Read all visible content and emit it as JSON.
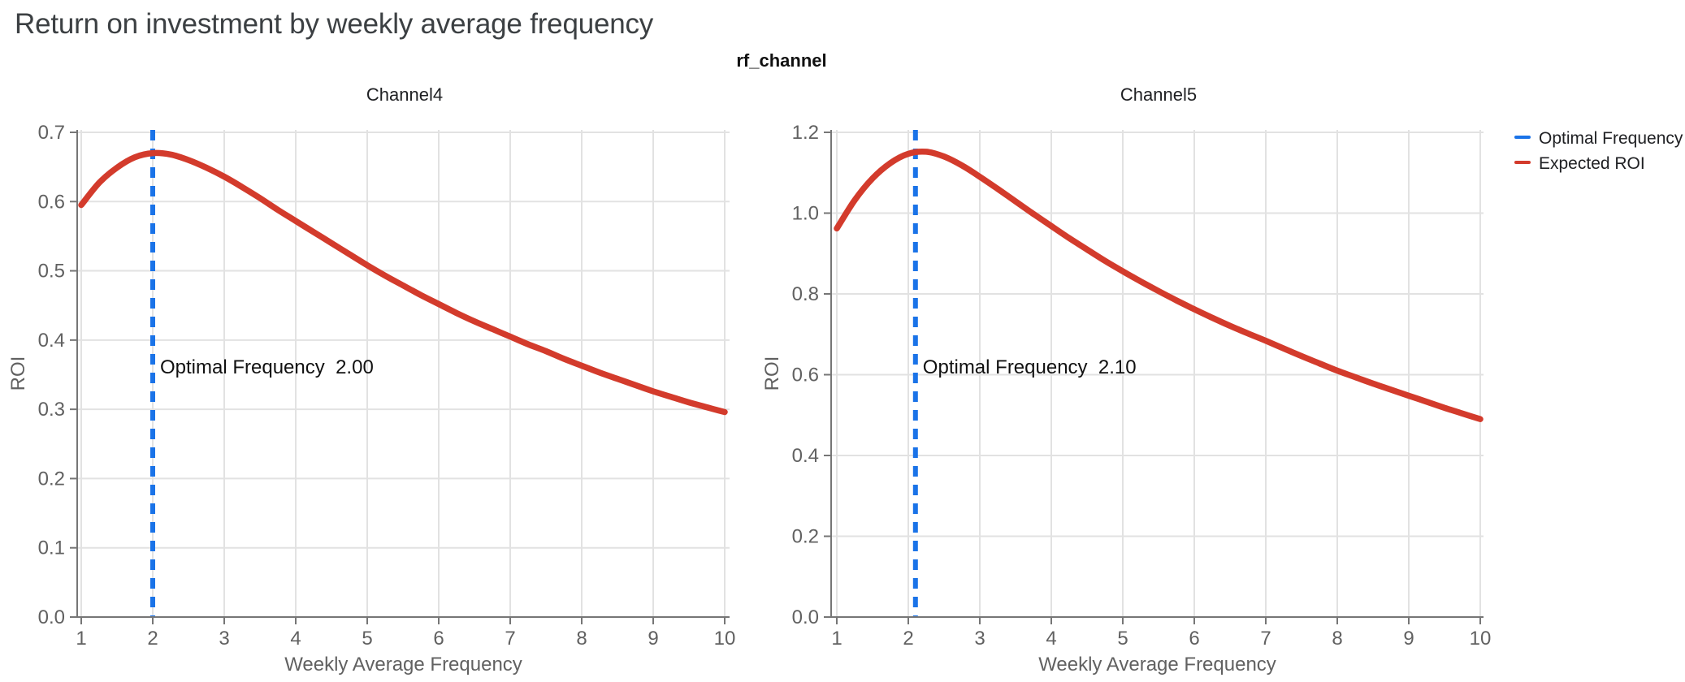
{
  "page": {
    "title": "Return on investment by weekly average frequency",
    "facet_title": "rf_channel"
  },
  "legend": {
    "items": [
      {
        "label": "Optimal Frequency",
        "color": "#1a73e8"
      },
      {
        "label": "Expected ROI",
        "color": "#d33b2c"
      }
    ]
  },
  "colors": {
    "curve_red": "#d33b2c",
    "vline_blue": "#1a73e8",
    "grid": "#e2e2e2",
    "axis_line": "#767676",
    "tick_label": "#616161",
    "annotation_text": "#111111"
  },
  "chart_data": [
    {
      "type": "line",
      "title": "Channel4",
      "xlabel": "Weekly Average Frequency",
      "ylabel": "ROI",
      "xlim": [
        0.94,
        10.08
      ],
      "ylim": [
        0,
        0.7035
      ],
      "x_ticks": [
        1,
        2,
        3,
        4,
        5,
        6,
        7,
        8,
        9,
        10
      ],
      "x_tick_labels": [
        "1",
        "2",
        "3",
        "4",
        "5",
        "6",
        "7",
        "8",
        "9",
        "10"
      ],
      "y_ticks": [
        0.0,
        0.1,
        0.2,
        0.3,
        0.4,
        0.5,
        0.6,
        0.7
      ],
      "y_tick_labels": [
        "0.0",
        "0.1",
        "0.2",
        "0.3",
        "0.4",
        "0.5",
        "0.6",
        "0.7"
      ],
      "grid": true,
      "optimal_frequency": 2.0,
      "annotation": "Optimal Frequency  2.00",
      "vline": {
        "name": "Optimal Frequency",
        "x": 2.0,
        "style": "dashed"
      },
      "series": [
        {
          "name": "Expected ROI",
          "x": [
            1.0,
            1.25,
            1.5,
            1.75,
            2.0,
            2.25,
            2.5,
            2.75,
            3.0,
            3.25,
            3.5,
            3.75,
            4.0,
            4.25,
            4.5,
            4.75,
            5.0,
            5.25,
            5.5,
            5.75,
            6.0,
            6.25,
            6.5,
            6.75,
            7.0,
            7.25,
            7.5,
            7.75,
            8.0,
            8.25,
            8.5,
            8.75,
            9.0,
            9.25,
            9.5,
            9.75,
            10.0
          ],
          "y": [
            0.595,
            0.627,
            0.649,
            0.664,
            0.67,
            0.668,
            0.66,
            0.649,
            0.636,
            0.621,
            0.605,
            0.588,
            0.572,
            0.556,
            0.54,
            0.524,
            0.508,
            0.493,
            0.479,
            0.465,
            0.452,
            0.439,
            0.427,
            0.416,
            0.405,
            0.394,
            0.384,
            0.373,
            0.363,
            0.353,
            0.344,
            0.335,
            0.326,
            0.318,
            0.31,
            0.303,
            0.296
          ]
        }
      ]
    },
    {
      "type": "line",
      "title": "Channel5",
      "xlabel": "Weekly Average Frequency",
      "ylabel": "ROI",
      "xlim": [
        0.92,
        10.08
      ],
      "ylim": [
        0,
        1.206
      ],
      "x_ticks": [
        1,
        2,
        3,
        4,
        5,
        6,
        7,
        8,
        9,
        10
      ],
      "x_tick_labels": [
        "1",
        "2",
        "3",
        "4",
        "5",
        "6",
        "7",
        "8",
        "9",
        "10"
      ],
      "y_ticks": [
        0.0,
        0.2,
        0.4,
        0.6,
        0.8,
        1.0,
        1.2
      ],
      "y_tick_labels": [
        "0.0",
        "0.2",
        "0.4",
        "0.6",
        "0.8",
        "1.0",
        "1.2"
      ],
      "grid": true,
      "optimal_frequency": 2.1,
      "annotation": "Optimal Frequency  2.10",
      "vline": {
        "name": "Optimal Frequency",
        "x": 2.1,
        "style": "dashed"
      },
      "series": [
        {
          "name": "Expected ROI",
          "x": [
            1.0,
            1.25,
            1.5,
            1.75,
            2.0,
            2.25,
            2.5,
            2.75,
            3.0,
            3.25,
            3.5,
            3.75,
            4.0,
            4.25,
            4.5,
            4.75,
            5.0,
            5.25,
            5.5,
            5.75,
            6.0,
            6.25,
            6.5,
            6.75,
            7.0,
            7.25,
            7.5,
            7.75,
            8.0,
            8.25,
            8.5,
            8.75,
            9.0,
            9.25,
            9.5,
            9.75,
            10.0
          ],
          "y": [
            0.962,
            1.032,
            1.086,
            1.124,
            1.147,
            1.152,
            1.14,
            1.118,
            1.09,
            1.06,
            1.029,
            0.998,
            0.968,
            0.938,
            0.91,
            0.882,
            0.856,
            0.831,
            0.807,
            0.784,
            0.762,
            0.741,
            0.721,
            0.702,
            0.684,
            0.665,
            0.646,
            0.628,
            0.61,
            0.594,
            0.578,
            0.563,
            0.548,
            0.533,
            0.518,
            0.504,
            0.49
          ]
        }
      ]
    }
  ]
}
